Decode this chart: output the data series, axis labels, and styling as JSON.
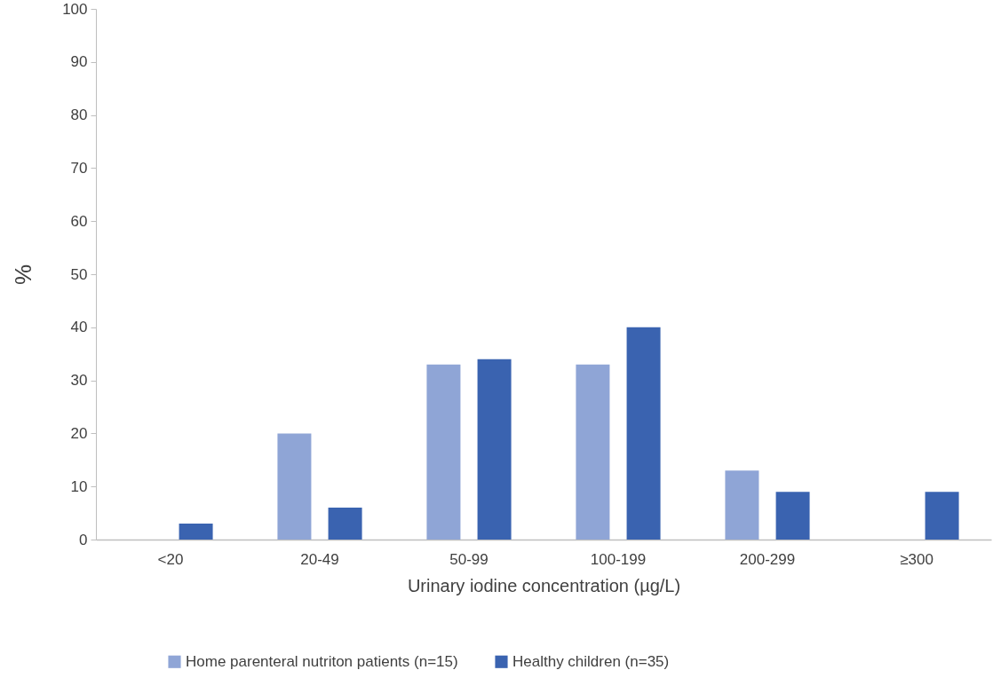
{
  "chart_data": {
    "type": "bar",
    "xlabel": "Urinary iodine concentration (µg/L)",
    "ylabel": "%",
    "categories": [
      "<20",
      "20-49",
      "50-99",
      "100-199",
      "200-299",
      "≥300"
    ],
    "series": [
      {
        "name": "Home parenteral nutriton patients (n=15)",
        "color": "#8fa5d6",
        "values": [
          0,
          20,
          33,
          33,
          13,
          0
        ]
      },
      {
        "name": "Healthy children (n=35)",
        "color": "#3a63b0",
        "values": [
          3,
          6,
          34,
          40,
          9,
          9
        ]
      }
    ],
    "ylim": [
      0,
      100
    ],
    "yticks": [
      0,
      10,
      20,
      30,
      40,
      50,
      60,
      70,
      80,
      90,
      100
    ],
    "grid": false,
    "legend": "bottom"
  }
}
